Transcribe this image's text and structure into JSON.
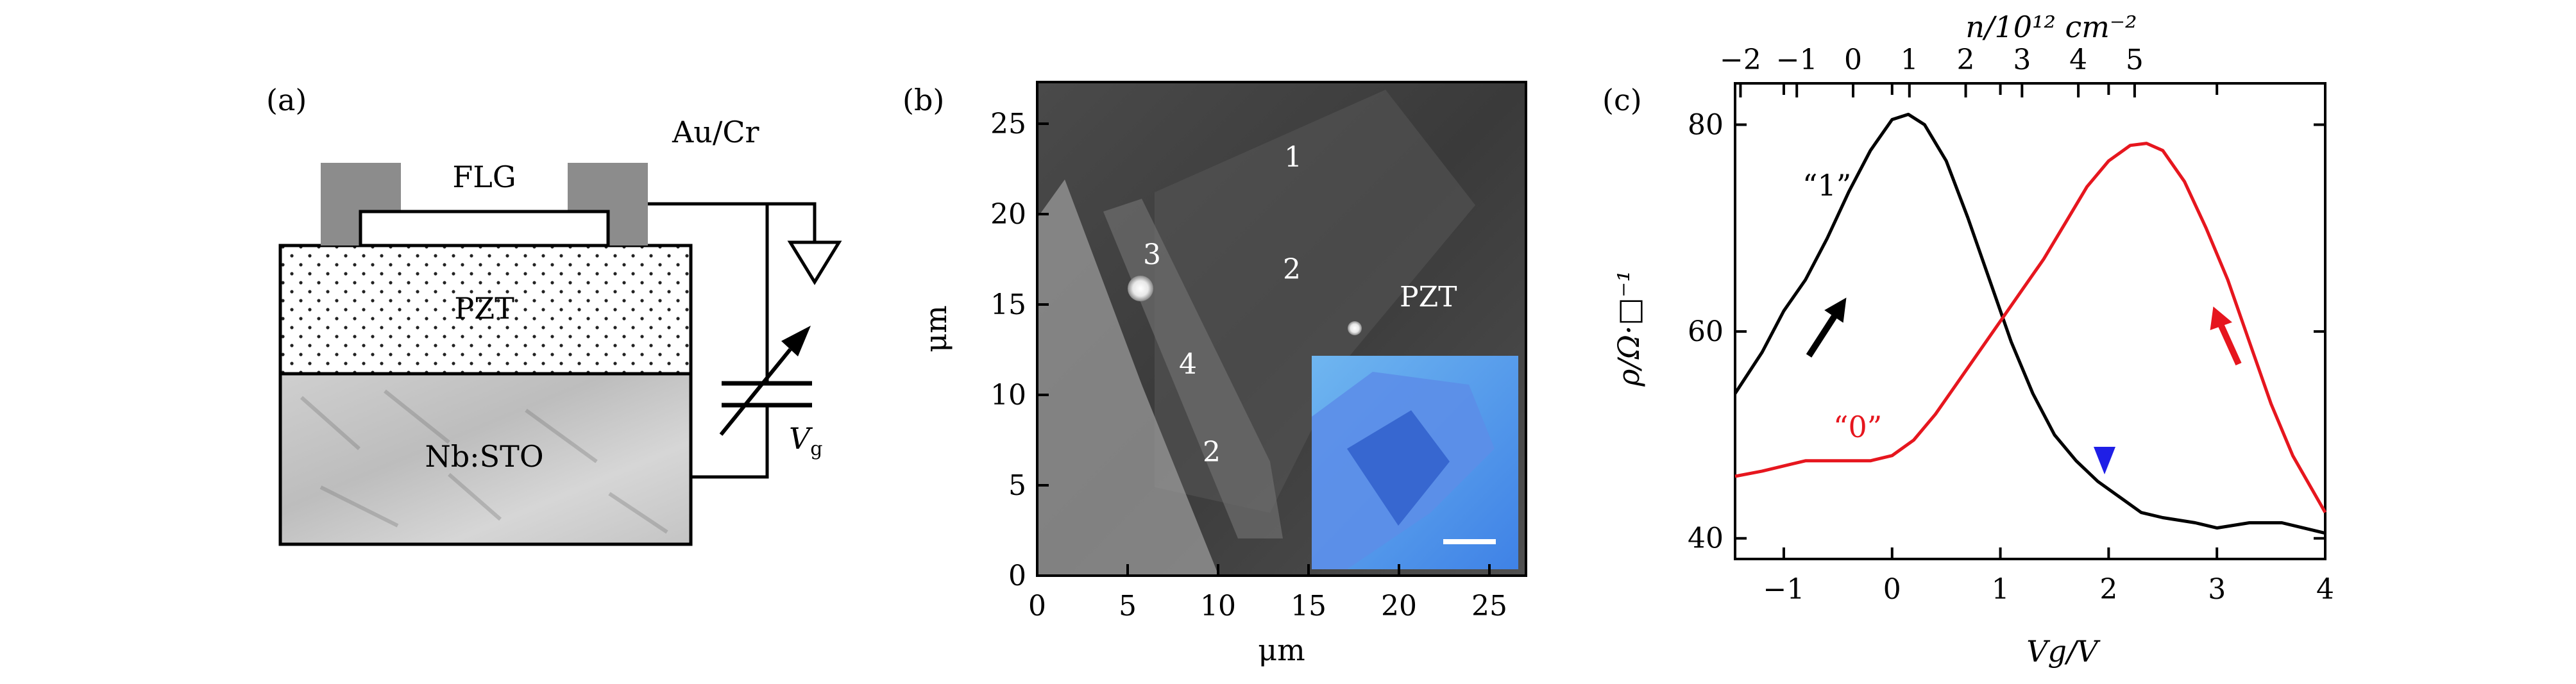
{
  "panel_a": {
    "label": "(a)",
    "flg": "FLG",
    "aucr": "Au/Cr",
    "pzt": "PZT",
    "nbsto": "Nb:STO",
    "vg_main": "V",
    "vg_sub": "g"
  },
  "panel_b": {
    "label": "(b)",
    "xlabel": "μm",
    "ylabel": "μm",
    "xticks": [
      "0",
      "5",
      "10",
      "15",
      "20",
      "25"
    ],
    "yticks": [
      "0",
      "5",
      "10",
      "15",
      "20",
      "25"
    ],
    "labels": [
      "1",
      "2",
      "3",
      "4",
      "2",
      "PZT"
    ]
  },
  "panel_c": {
    "label": "(c)",
    "top_axis_label": "n/10¹² cm⁻²",
    "ylabel": "ρ/Ω·□⁻¹",
    "xlabel": "Vg/V",
    "curve1_label": "“1”",
    "curve0_label": "“0”",
    "colors": {
      "curve1": "#000000",
      "curve0": "#e6161e",
      "marker": "#1f1fe6"
    }
  },
  "chart_data": {
    "type": "line",
    "xlabel": "Vg/V",
    "ylabel": "ρ/Ω·□⁻¹",
    "xlim": [
      -1.45,
      4.0
    ],
    "ylim": [
      38,
      84
    ],
    "xticks": [
      -1,
      0,
      1,
      2,
      3,
      4
    ],
    "yticks": [
      40,
      60,
      80
    ],
    "top_axis": {
      "label": "n/10¹² cm⁻²",
      "ticks": [
        "−2",
        "−1",
        "0",
        "1",
        "2",
        "3",
        "4",
        "5"
      ],
      "at_vg": [
        -1.4,
        -0.88,
        -0.36,
        0.16,
        0.68,
        1.2,
        1.72,
        2.24
      ]
    },
    "series": [
      {
        "name": "“1”",
        "color": "#000000",
        "x": [
          -1.45,
          -1.2,
          -1.0,
          -0.8,
          -0.6,
          -0.4,
          -0.2,
          0.0,
          0.15,
          0.3,
          0.5,
          0.7,
          0.9,
          1.1,
          1.3,
          1.5,
          1.7,
          1.9,
          2.1,
          2.3,
          2.5,
          2.8,
          3.0,
          3.3,
          3.6,
          3.8,
          4.0
        ],
        "values": [
          54,
          58,
          62,
          65,
          69,
          73.5,
          77.5,
          80.5,
          81,
          80,
          76.5,
          71,
          65,
          59,
          54,
          50,
          47.5,
          45.5,
          44,
          42.5,
          42,
          41.5,
          41,
          41.5,
          41.5,
          41,
          40.5
        ]
      },
      {
        "name": "“0”",
        "color": "#e6161e",
        "x": [
          -1.45,
          -1.2,
          -1.0,
          -0.8,
          -0.5,
          -0.2,
          0.0,
          0.2,
          0.4,
          0.6,
          0.8,
          1.0,
          1.2,
          1.4,
          1.6,
          1.8,
          2.0,
          2.2,
          2.35,
          2.5,
          2.7,
          2.9,
          3.1,
          3.3,
          3.5,
          3.7,
          4.0
        ],
        "values": [
          46,
          46.5,
          47,
          47.5,
          47.5,
          47.5,
          48,
          49.5,
          52,
          55,
          58,
          61,
          64,
          67,
          70.5,
          74,
          76.5,
          78,
          78.2,
          77.5,
          74.5,
          70,
          65,
          59,
          53,
          48,
          42.5
        ]
      }
    ],
    "annotations": [
      "“1”",
      "“0”"
    ]
  }
}
